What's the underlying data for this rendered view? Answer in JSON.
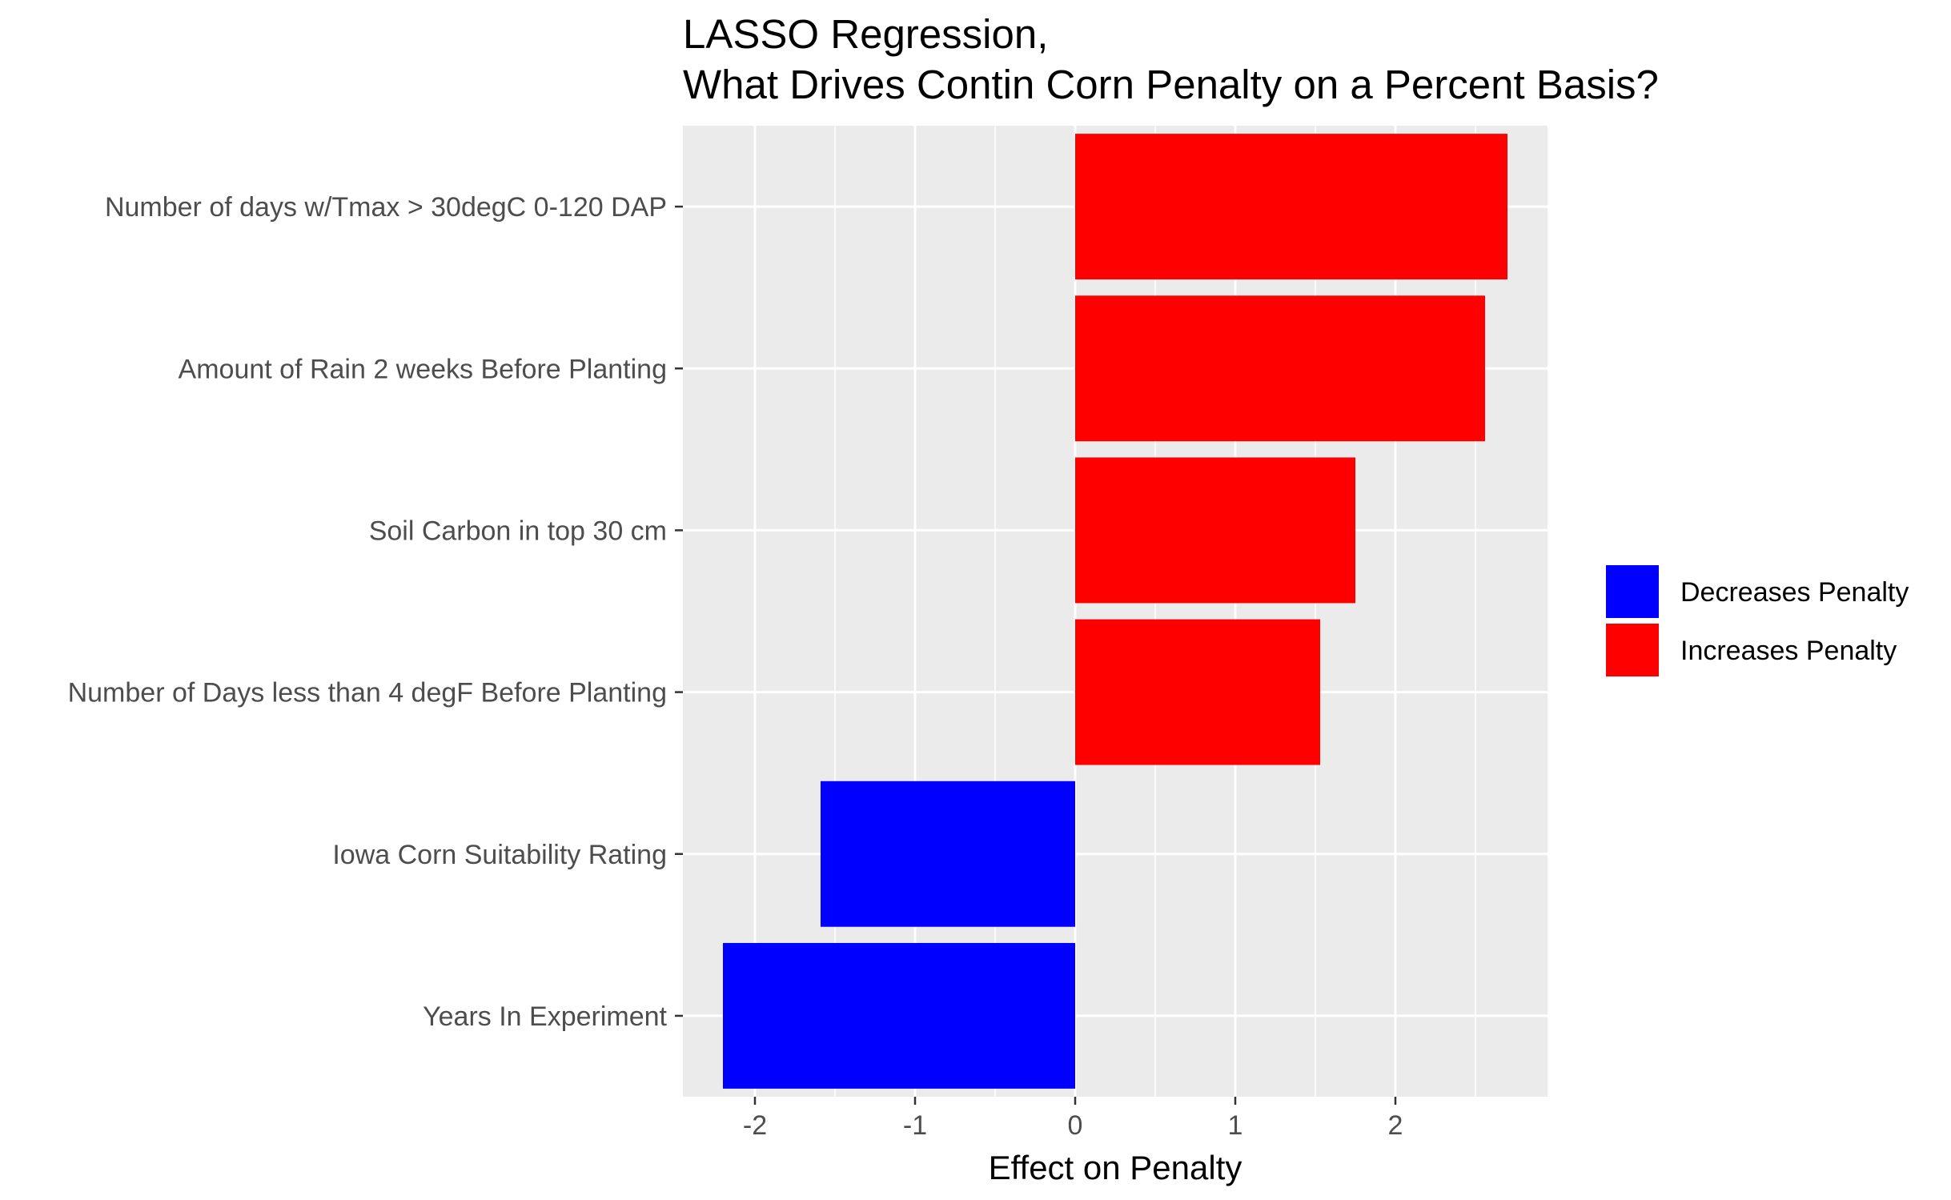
{
  "chart_data": {
    "type": "bar",
    "orientation": "horizontal",
    "title": [
      "LASSO Regression,",
      "What Drives Contin Corn Penalty on a Percent Basis?"
    ],
    "xlabel": "Effect on Penalty",
    "ylabel": "",
    "xlim": [
      -2.45,
      2.95
    ],
    "xticks": [
      -2,
      -1,
      0,
      1,
      2
    ],
    "xtick_labels": [
      "-2",
      "-1",
      "0",
      "1",
      "2"
    ],
    "grid": true,
    "background": "#ebebeb",
    "categories": [
      "Number of days w/Tmax > 30degC 0-120 DAP",
      "Amount of Rain 2 weeks Before Planting",
      "Soil Carbon in top 30 cm",
      "Number of Days less than 4 degF Before Planting",
      "Iowa Corn Suitability Rating",
      "Years In Experiment"
    ],
    "values": [
      2.7,
      2.56,
      1.75,
      1.53,
      -1.59,
      -2.2
    ],
    "groups": [
      "Increases Penalty",
      "Increases Penalty",
      "Increases Penalty",
      "Increases Penalty",
      "Decreases Penalty",
      "Decreases Penalty"
    ],
    "legend": {
      "placement": "right",
      "entries": [
        {
          "name": "Decreases Penalty",
          "color": "#0000ff"
        },
        {
          "name": "Increases Penalty",
          "color": "#ff0000"
        }
      ]
    }
  }
}
